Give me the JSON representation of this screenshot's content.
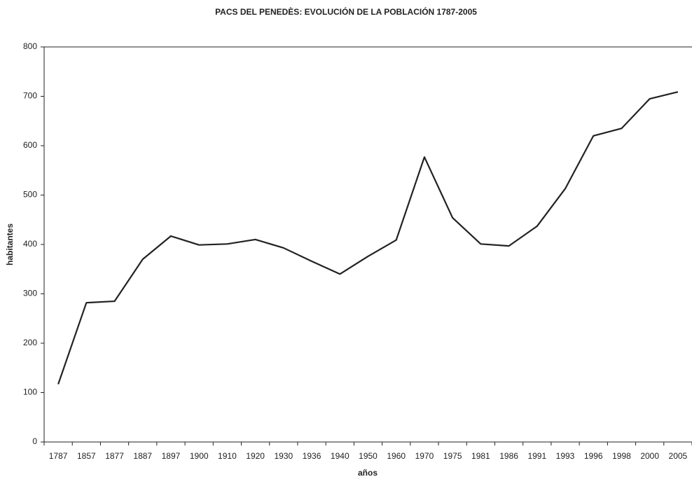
{
  "chart_data": {
    "type": "line",
    "title": "PACS DEL PENEDÈS: EVOLUCIÓN DE LA POBLACIÓN 1787-2005",
    "x_label": "años",
    "y_label": "habitantes",
    "categories": [
      "1787",
      "1857",
      "1877",
      "1887",
      "1897",
      "1900",
      "1910",
      "1920",
      "1930",
      "1936",
      "1940",
      "1950",
      "1960",
      "1970",
      "1975",
      "1981",
      "1986",
      "1991",
      "1993",
      "1996",
      "1998",
      "2000",
      "2005"
    ],
    "series": [
      {
        "name": "habitantes",
        "color": "#222222",
        "values": [
          117,
          282,
          285,
          370,
          417,
          399,
          401,
          410,
          393,
          366,
          340,
          376,
          409,
          577,
          454,
          401,
          397,
          437,
          513,
          620,
          635,
          695,
          709
        ]
      }
    ],
    "ylim": [
      0,
      800
    ],
    "yticks": [
      0,
      100,
      200,
      300,
      400,
      500,
      600,
      700,
      800
    ],
    "grid": false
  }
}
